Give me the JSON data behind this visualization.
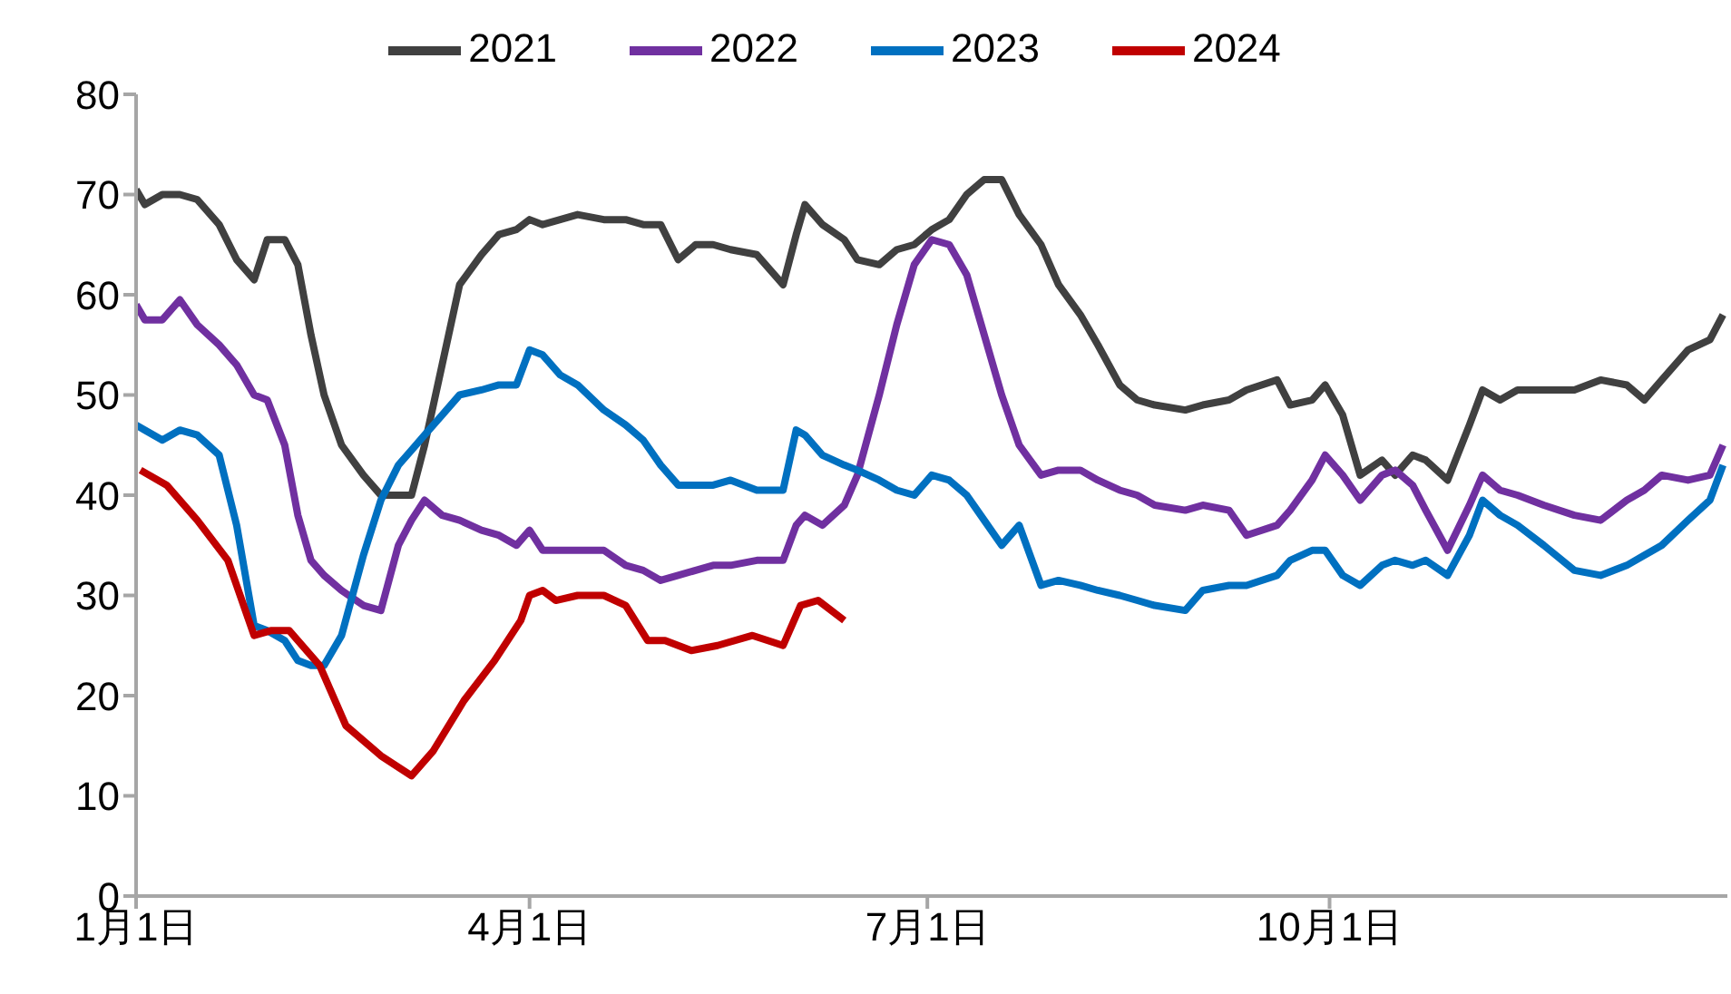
{
  "chart_data": {
    "type": "line",
    "legend": "top",
    "grid": false,
    "marker": "none",
    "line_style": "solid",
    "xlim": [
      "--01-01",
      "--12-31"
    ],
    "xticks": [
      {
        "value": "--01-01",
        "label": "1月1日"
      },
      {
        "value": "--04-01",
        "label": "4月1日"
      },
      {
        "value": "--07-01",
        "label": "7月1日"
      },
      {
        "value": "--10-01",
        "label": "10月1日"
      }
    ],
    "ylim": [
      0,
      80
    ],
    "yticks": [
      0,
      10,
      20,
      30,
      40,
      50,
      60,
      70,
      80
    ],
    "x": [
      "--01-01",
      "--01-03",
      "--01-07",
      "--01-11",
      "--01-15",
      "--01-20",
      "--01-24",
      "--01-28",
      "--01-31",
      "--02-04",
      "--02-07",
      "--02-10",
      "--02-13",
      "--02-17",
      "--02-22",
      "--02-26",
      "--03-02",
      "--03-05",
      "--03-08",
      "--03-12",
      "--03-16",
      "--03-21",
      "--03-25",
      "--03-29",
      "--04-01",
      "--04-04",
      "--04-08",
      "--04-12",
      "--04-18",
      "--04-23",
      "--04-27",
      "--05-01",
      "--05-05",
      "--05-09",
      "--05-13",
      "--05-17",
      "--05-23",
      "--05-29",
      "--06-01",
      "--06-03",
      "--06-07",
      "--06-12",
      "--06-15",
      "--06-20",
      "--06-24",
      "--06-28",
      "--07-02",
      "--07-06",
      "--07-10",
      "--07-14",
      "--07-18",
      "--07-22",
      "--07-27",
      "--07-31",
      "--08-05",
      "--08-09",
      "--08-14",
      "--08-18",
      "--08-22",
      "--08-29",
      "--09-02",
      "--09-08",
      "--09-12",
      "--09-19",
      "--09-22",
      "--09-27",
      "--09-30",
      "--10-04",
      "--10-08",
      "--10-13",
      "--10-16",
      "--10-20",
      "--10-23",
      "--10-28",
      "--11-02",
      "--11-05",
      "--11-09",
      "--11-13",
      "--11-19",
      "--11-26",
      "--12-02",
      "--12-08",
      "--12-12",
      "--12-16",
      "--12-22",
      "--12-27",
      "--12-30"
    ],
    "series": [
      {
        "name": "2021",
        "color": "#404040",
        "values": [
          70.5,
          69,
          70,
          70,
          69.5,
          67,
          63.5,
          61.5,
          65.5,
          65.5,
          63,
          56,
          50,
          45,
          42,
          40,
          40,
          40,
          45,
          53,
          61,
          64,
          66,
          66.5,
          67.5,
          67,
          67.5,
          68,
          67.5,
          67.5,
          67,
          67,
          63.5,
          65,
          65,
          64.5,
          64,
          61,
          66,
          69,
          67,
          65.5,
          63.5,
          63,
          64.5,
          65,
          66.5,
          67.5,
          70,
          71.5,
          71.5,
          68,
          65,
          61,
          58,
          55,
          51,
          49.5,
          49,
          48.5,
          49,
          49.5,
          50.5,
          51.5,
          49,
          49.5,
          51,
          48,
          42,
          43.5,
          42,
          44,
          43.5,
          41.5,
          47,
          50.5,
          49.5,
          50.5,
          50.5,
          50.5,
          51.5,
          51,
          49.5,
          51.5,
          54.5,
          55.5,
          58
        ]
      },
      {
        "name": "2022",
        "color": "#7030a0",
        "values": [
          59,
          57.5,
          57.5,
          59.5,
          57,
          55,
          53,
          50,
          49.5,
          45,
          38,
          33.5,
          32,
          30.5,
          29,
          28.5,
          35,
          37.5,
          39.5,
          38,
          37.5,
          36.5,
          36,
          35,
          36.5,
          34.5,
          34.5,
          34.5,
          34.5,
          33,
          32.5,
          31.5,
          32,
          32.5,
          33,
          33,
          33.5,
          33.5,
          37,
          38,
          37,
          39,
          42,
          50,
          57,
          63,
          65.5,
          65,
          62,
          56,
          50,
          45,
          42,
          42.5,
          42.5,
          41.5,
          40.5,
          40,
          39,
          38.5,
          39,
          38.5,
          36,
          37,
          38.5,
          41.5,
          44,
          42,
          39.5,
          42,
          42.5,
          41,
          38.5,
          34.5,
          39,
          42,
          40.5,
          40,
          39,
          38,
          37.5,
          39.5,
          40.5,
          42,
          41.5,
          42,
          45
        ]
      },
      {
        "name": "2023",
        "color": "#0070c0",
        "values": [
          47,
          46.5,
          45.5,
          46.5,
          46,
          44,
          37,
          27,
          26.5,
          25.5,
          23.5,
          23,
          23,
          26,
          34,
          39.5,
          43,
          44.5,
          46,
          48,
          50,
          50.5,
          51,
          51,
          54.5,
          54,
          52,
          51,
          48.5,
          47,
          45.5,
          43,
          41,
          41,
          41,
          41.5,
          40.5,
          40.5,
          46.5,
          46,
          44,
          43,
          42.5,
          41.5,
          40.5,
          40,
          42,
          41.5,
          40,
          37.5,
          35,
          37,
          31,
          31.5,
          31,
          30.5,
          30,
          29.5,
          29,
          28.5,
          30.5,
          31,
          31,
          32,
          33.5,
          34.5,
          34.5,
          32,
          31,
          33,
          33.5,
          33,
          33.5,
          32,
          36,
          39.5,
          38,
          37,
          35,
          32.5,
          32,
          33,
          34,
          35,
          37.5,
          39.5,
          43
        ]
      },
      {
        "name": "2024",
        "color": "#c00000",
        "x": [
          "--01-02",
          "--01-08",
          "--01-15",
          "--01-22",
          "--01-28",
          "--02-01",
          "--02-05",
          "--02-12",
          "--02-18",
          "--02-26",
          "--03-05",
          "--03-10",
          "--03-17",
          "--03-24",
          "--03-30",
          "--04-01",
          "--04-04",
          "--04-07",
          "--04-12",
          "--04-18",
          "--04-23",
          "--04-28",
          "--05-02",
          "--05-08",
          "--05-14",
          "--05-22",
          "--05-29",
          "--06-02",
          "--06-06",
          "--06-12"
        ],
        "values": [
          42.5,
          41,
          37.5,
          33.5,
          26,
          26.5,
          26.5,
          23,
          17,
          14,
          12,
          14.5,
          19.5,
          23.5,
          27.5,
          30,
          30.5,
          29.5,
          30,
          30,
          29,
          25.5,
          25.5,
          24.5,
          25,
          26,
          25,
          29,
          29.5,
          27.5
        ]
      }
    ]
  }
}
